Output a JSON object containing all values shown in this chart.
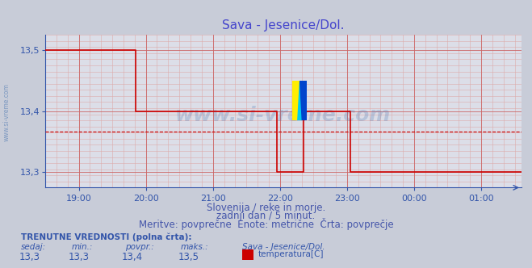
{
  "title": "Sava - Jesenice/Dol.",
  "title_color": "#4444cc",
  "bg_color": "#c8ccd8",
  "plot_bg_color": "#dcdee8",
  "line_color": "#cc0000",
  "line_width": 1.2,
  "ylim": [
    13.275,
    13.525
  ],
  "yticks": [
    13.3,
    13.4,
    13.5
  ],
  "ytick_labels": [
    "13,3",
    "13,4",
    "13,5"
  ],
  "avg_line_value": 13.367,
  "avg_line_color": "#cc0000",
  "watermark": "www.si-vreme.com",
  "watermark_color": "#3366aa",
  "watermark_alpha": 0.22,
  "watermark_fontsize": 18,
  "footer_lines": [
    "Slovenija / reke in morje.",
    "zadnji dan / 5 minut.",
    "Meritve: povprečne  Enote: metrične  Črta: povprečje"
  ],
  "footer_color": "#4455aa",
  "footer_fontsize": 8.5,
  "tick_color": "#3355aa",
  "grid_color_major": "#cc6666",
  "grid_color_minor": "#ddaaaa",
  "sidebar_text": "www.si-vreme.com",
  "sidebar_color": "#3366aa",
  "bottom_label1": "TRENUTNE VREDNOSTI (polna črta):",
  "bottom_label1_color": "#3355aa",
  "bottom_cols": [
    "sedaj:",
    "min.:",
    "povpr.:",
    "maks.:",
    "Sava - Jesenice/Dol."
  ],
  "bottom_vals": [
    "13,3",
    "13,3",
    "13,4",
    "13,5"
  ],
  "bottom_legend": "temperatura[C]",
  "legend_color": "#cc0000",
  "xlim": [
    18.5,
    25.6
  ],
  "xtick_pos": [
    19.0,
    20.0,
    21.0,
    22.0,
    23.0,
    24.0,
    25.0
  ],
  "xtick_labels": [
    "19:00",
    "20:00",
    "21:00",
    "22:00",
    "23:00",
    "00:00",
    "01:00"
  ],
  "segment_data": [
    {
      "x_start": 18.5,
      "x_end": 19.25,
      "y": 13.5
    },
    {
      "x_start": 19.25,
      "x_end": 19.85,
      "y": 13.5
    },
    {
      "x_start": 19.85,
      "x_end": 21.5,
      "y": 13.4
    },
    {
      "x_start": 21.5,
      "x_end": 21.95,
      "y": 13.4
    },
    {
      "x_start": 21.95,
      "x_end": 22.05,
      "y": 13.3
    },
    {
      "x_start": 22.05,
      "x_end": 22.35,
      "y": 13.3
    },
    {
      "x_start": 22.35,
      "x_end": 22.45,
      "y": 13.4
    },
    {
      "x_start": 22.45,
      "x_end": 22.85,
      "y": 13.4
    },
    {
      "x_start": 22.85,
      "x_end": 23.05,
      "y": 13.4
    },
    {
      "x_start": 23.05,
      "x_end": 23.1,
      "y": 13.3
    },
    {
      "x_start": 23.1,
      "x_end": 25.6,
      "y": 13.3
    }
  ]
}
